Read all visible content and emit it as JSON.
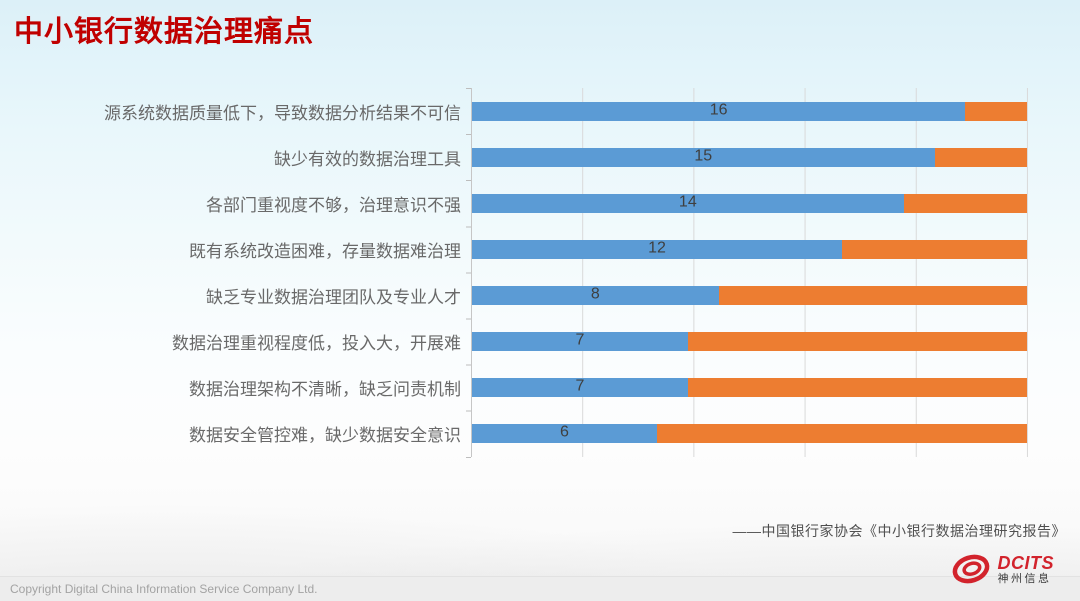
{
  "slide": {
    "title": "中小银行数据治理痛点",
    "citation": "——中国银行家协会《中小银行数据治理研究报告》",
    "footer_copyright": "Copyright  Digital China Information Service Company Ltd.",
    "logo": {
      "brand": "DCITS",
      "brand_cn": "神州信息"
    }
  },
  "colors": {
    "title_red": "#C00000",
    "bar_blue": "#5B9BD5",
    "bar_orange": "#ED7D31",
    "gridline": "#D9D9D9",
    "category_label": "#696969",
    "data_label": "#3F3F3F",
    "background_top": "#DCF0F8"
  },
  "chart_data": {
    "type": "bar",
    "orientation": "horizontal",
    "stacked": true,
    "stacked_total": 18,
    "title": "",
    "xlabel": "",
    "ylabel": "",
    "xlim": [
      0,
      18
    ],
    "gridline_positions_pct": [
      0,
      20,
      40,
      60,
      80,
      100
    ],
    "axis_tick_labels_visible": false,
    "legend_visible": false,
    "categories": [
      "源系统数据质量低下，导致数据分析结果不可信",
      "缺少有效的数据治理工具",
      "各部门重视度不够，治理意识不强",
      "既有系统改造困难，存量数据难治理",
      "缺乏专业数据治理团队及专业人才",
      "数据治理重视程度低，投入大，开展难",
      "数据治理架构不清晰，缺乏问责机制",
      "数据安全管控难，缺少数据安全意识"
    ],
    "series": [
      {
        "name": "blue",
        "color": "#5B9BD5",
        "values": [
          16,
          15,
          14,
          12,
          8,
          7,
          7,
          6
        ]
      },
      {
        "name": "orange",
        "color": "#ED7D31",
        "values": [
          2,
          3,
          4,
          6,
          10,
          11,
          11,
          12
        ]
      }
    ],
    "data_labels": {
      "series": "blue",
      "position": "center",
      "values": [
        16,
        15,
        14,
        12,
        8,
        7,
        7,
        6
      ]
    }
  }
}
